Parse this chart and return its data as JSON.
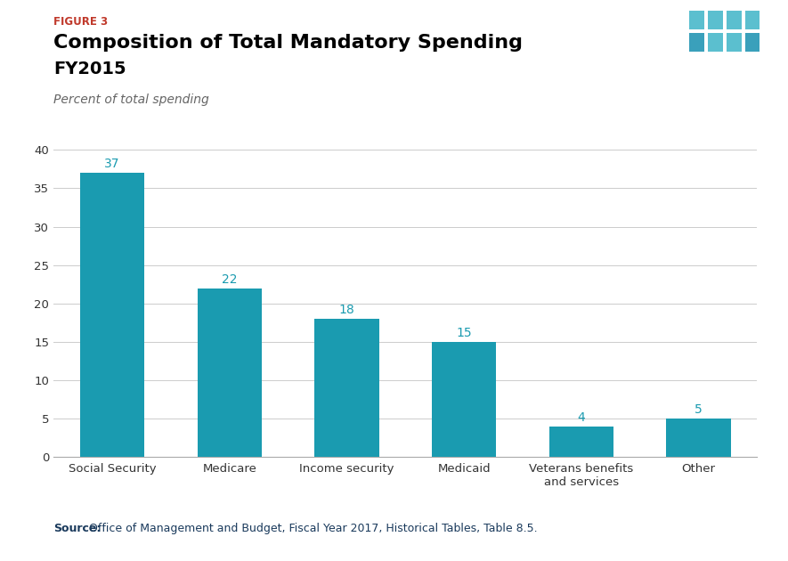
{
  "figure_label": "FIGURE 3",
  "title_line1": "Composition of Total Mandatory Spending",
  "title_line2": "FY2015",
  "subtitle": "Percent of total spending",
  "categories": [
    "Social Security",
    "Medicare",
    "Income security",
    "Medicaid",
    "Veterans benefits\nand services",
    "Other"
  ],
  "values": [
    37,
    22,
    18,
    15,
    4,
    5
  ],
  "bar_color": "#1a9bb0",
  "ylim": [
    0,
    40
  ],
  "yticks": [
    0,
    5,
    10,
    15,
    20,
    25,
    30,
    35,
    40
  ],
  "source_bold": "Source:",
  "source_text": " Office of Management and Budget, Fiscal Year 2017, Historical Tables, Table 8.5.",
  "figure_label_color": "#c0392b",
  "title_color": "#000000",
  "subtitle_color": "#666666",
  "source_color": "#1a3a5c",
  "bg_color": "#ffffff",
  "tpc_bg_color": "#1e3a5f",
  "bar_label_color": "#1a9bb0"
}
